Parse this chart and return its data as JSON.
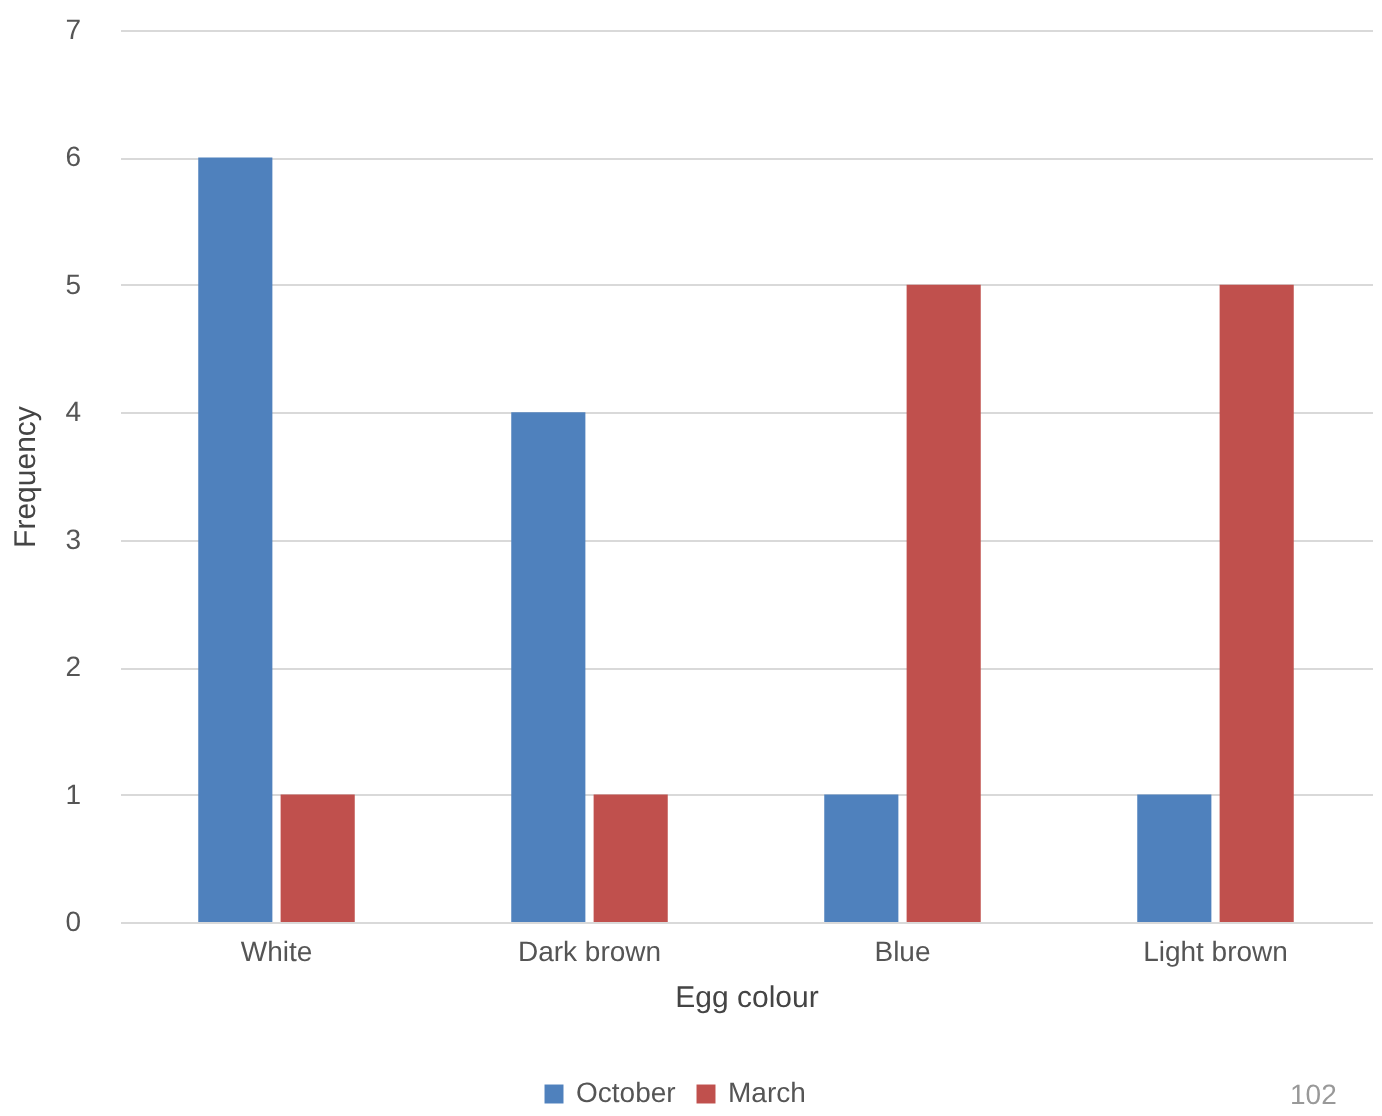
{
  "chart_data": {
    "type": "bar",
    "xlabel": "Egg colour",
    "ylabel": "Frequency",
    "categories": [
      "White",
      "Dark brown",
      "Blue",
      "Light brown"
    ],
    "series": [
      {
        "name": "October",
        "color": "#4f81bd",
        "values": [
          6,
          4,
          1,
          1
        ]
      },
      {
        "name": "March",
        "color": "#c0504d",
        "values": [
          1,
          1,
          5,
          5
        ]
      }
    ],
    "ylim": [
      0,
      7
    ],
    "yticks": [
      0,
      1,
      2,
      3,
      4,
      5,
      6,
      7
    ],
    "grid": "y",
    "legend": "bottom",
    "annotations": [
      "102"
    ]
  }
}
